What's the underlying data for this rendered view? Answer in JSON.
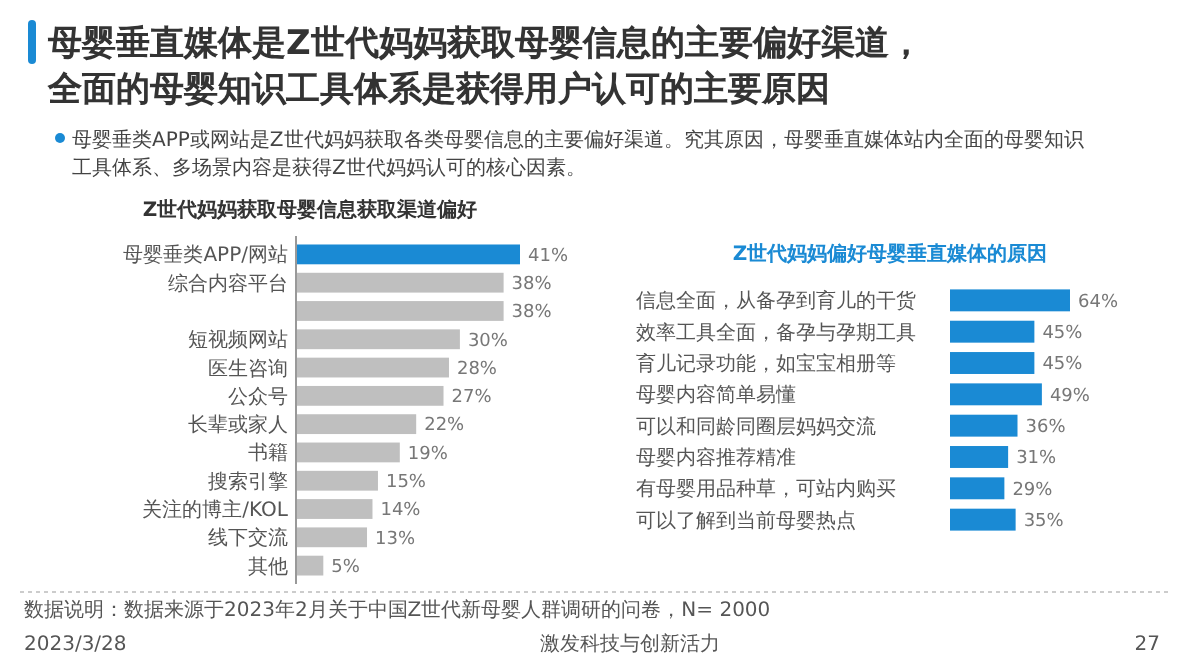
{
  "chart_data": [
    {
      "type": "bar",
      "orientation": "horizontal",
      "title": "Z世代妈妈获取母婴信息获取渠道偏好",
      "value_labels": [
        "41%",
        "38%",
        "38%",
        "30%",
        "28%",
        "27%",
        "22%",
        "19%",
        "15%",
        "14%",
        "13%",
        "5%"
      ],
      "categories": [
        "母婴垂类APP/网站",
        "综合内容平台",
        null,
        "短视频网站",
        "医生咨询",
        "公众号",
        "长辈或家人",
        "书籍",
        "搜索引擎",
        "关注的博主/KOL",
        "线下交流",
        "其他"
      ],
      "values": [
        41,
        38,
        38,
        30,
        28,
        27,
        22,
        19,
        15,
        14,
        13,
        5
      ],
      "colors": [
        "#1a8ad4",
        "#bfbfbf",
        "#bfbfbf",
        "#bfbfbf",
        "#bfbfbf",
        "#bfbfbf",
        "#bfbfbf",
        "#bfbfbf",
        "#bfbfbf",
        "#bfbfbf",
        "#bfbfbf",
        "#bfbfbf"
      ],
      "annotations": [
        "母婴垂直媒体是Z世代妈妈获取母婴信息的主要偏好渠道，",
        "全面的母婴知识工具体系是获得用户认可的主要原因",
        "母婴垂类APP或网站是Z世代妈妈获取各类母婴信息的主要偏好渠道。究其原因，母婴垂直媒体站内全面的母婴知识工具体系、多场景内容是获得Z世代妈妈认可的核心因素。",
        "数据说明：数据来源于2023年2月关于中国Z世代新母婴人群调研的问卷，N= 2000",
        "2023/3/28",
        "激发科技与创新活力",
        "27"
      ]
    },
    {
      "type": "bar",
      "orientation": "horizontal",
      "title": "Z世代妈妈偏好母婴垂直媒体的原因",
      "value_labels": [
        "64%",
        "45%",
        "45%",
        "49%",
        "36%",
        "31%",
        "29%",
        "35%"
      ],
      "categories": [
        "信息全面，从备孕到育儿的干货",
        "效率工具全面，备孕与孕期工具",
        "育儿记录功能，如宝宝相册等",
        "母婴内容简单易懂",
        "可以和同龄同圈层妈妈交流",
        "母婴内容推荐精准",
        "有母婴用品种草，可站内购买",
        "可以了解到当前母婴热点"
      ],
      "values": [
        64,
        45,
        45,
        49,
        36,
        31,
        29,
        35
      ],
      "colors": [
        "#1a8ad4",
        "#1a8ad4",
        "#1a8ad4",
        "#1a8ad4",
        "#1a8ad4",
        "#1a8ad4",
        "#1a8ad4",
        "#1a8ad4"
      ]
    }
  ]
}
